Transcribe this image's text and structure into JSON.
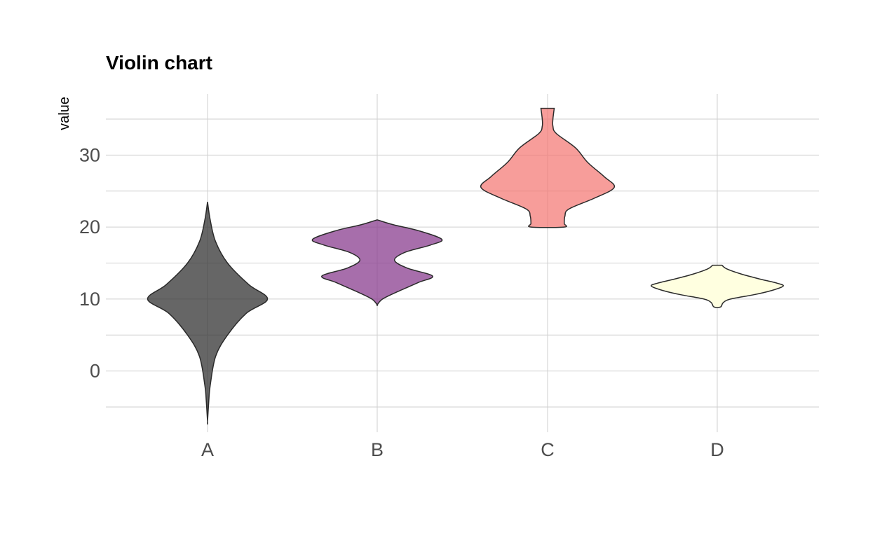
{
  "chart_data": {
    "type": "violin",
    "title": "Violin chart",
    "xlabel": "",
    "ylabel": "value",
    "categories": [
      "A",
      "B",
      "C",
      "D"
    ],
    "yticks": [
      0,
      10,
      20,
      30
    ],
    "ylim": [
      -8.5,
      38.5
    ],
    "grid": true,
    "legend": "none",
    "series": [
      {
        "category": "A",
        "color": "#333333",
        "opacity": 0.75,
        "min": -7,
        "max": 23.5,
        "density": [
          [
            23.5,
            0
          ],
          [
            21,
            0.04
          ],
          [
            18,
            0.12
          ],
          [
            15,
            0.3
          ],
          [
            12,
            0.62
          ],
          [
            10,
            0.9
          ],
          [
            8,
            0.58
          ],
          [
            5,
            0.3
          ],
          [
            2,
            0.12
          ],
          [
            -2,
            0.04
          ],
          [
            -4,
            0.02
          ],
          [
            -7,
            0
          ]
        ]
      },
      {
        "category": "B",
        "color": "#8a3d8f",
        "opacity": 0.75,
        "min": 9.2,
        "max": 21,
        "density": [
          [
            21,
            0
          ],
          [
            20.3,
            0.25
          ],
          [
            19.5,
            0.62
          ],
          [
            18.3,
            0.97
          ],
          [
            17.5,
            0.8
          ],
          [
            16.5,
            0.42
          ],
          [
            15.4,
            0.26
          ],
          [
            14.3,
            0.45
          ],
          [
            13.2,
            0.83
          ],
          [
            12.3,
            0.62
          ],
          [
            11,
            0.3
          ],
          [
            10,
            0.08
          ],
          [
            9.2,
            0
          ]
        ]
      },
      {
        "category": "C",
        "color": "#f4736f",
        "opacity": 0.7,
        "min": 20,
        "max": 36.5,
        "density": [
          [
            36.5,
            0.1
          ],
          [
            35,
            0.08
          ],
          [
            34,
            0.08
          ],
          [
            33,
            0.13
          ],
          [
            31,
            0.42
          ],
          [
            29,
            0.6
          ],
          [
            27,
            0.85
          ],
          [
            25.5,
            1
          ],
          [
            24,
            0.7
          ],
          [
            22.5,
            0.32
          ],
          [
            21.5,
            0.26
          ],
          [
            20.5,
            0.25
          ],
          [
            20,
            0.25
          ]
        ]
      },
      {
        "category": "D",
        "color": "#ffffe0",
        "opacity": 1,
        "min": 8.9,
        "max": 14.7,
        "density": [
          [
            14.7,
            0.07
          ],
          [
            14.2,
            0.14
          ],
          [
            13.5,
            0.35
          ],
          [
            12.8,
            0.63
          ],
          [
            12.2,
            0.9
          ],
          [
            11.8,
            0.99
          ],
          [
            11.2,
            0.82
          ],
          [
            10.6,
            0.55
          ],
          [
            10,
            0.2
          ],
          [
            9.5,
            0.09
          ],
          [
            8.9,
            0.05
          ]
        ]
      }
    ]
  }
}
